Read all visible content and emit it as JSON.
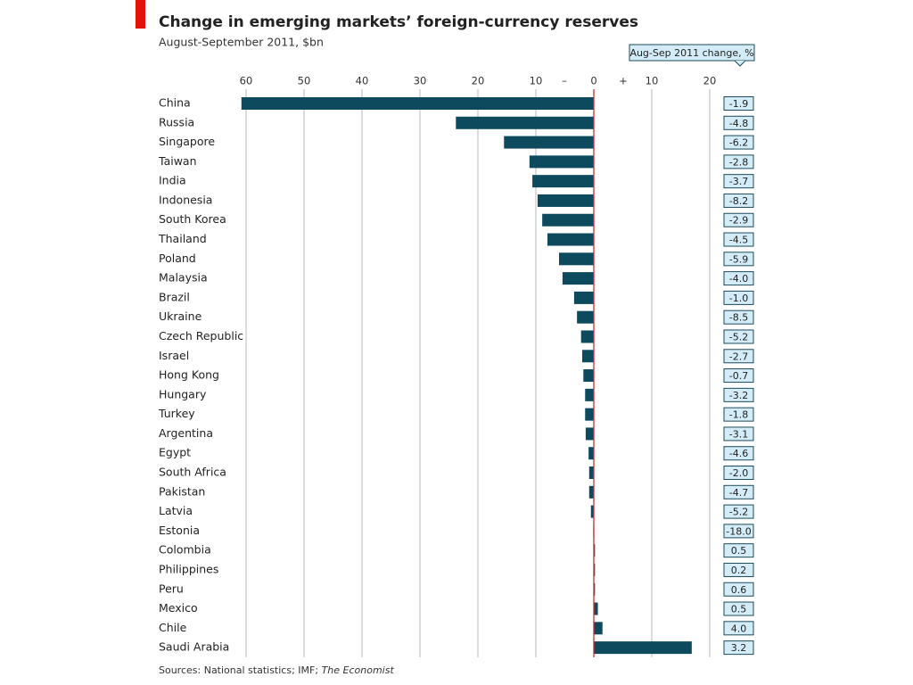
{
  "chart_data": {
    "type": "bar",
    "orientation": "horizontal",
    "title": "Change in emerging markets’ foreign-currency reserves",
    "subtitle": "August-September 2011, $bn",
    "categories": [
      "China",
      "Russia",
      "Singapore",
      "Taiwan",
      "India",
      "Indonesia",
      "South Korea",
      "Thailand",
      "Poland",
      "Malaysia",
      "Brazil",
      "Ukraine",
      "Czech Republic",
      "Israel",
      "Hong Kong",
      "Hungary",
      "Turkey",
      "Argentina",
      "Egypt",
      "South Africa",
      "Pakistan",
      "Latvia",
      "Estonia",
      "Colombia",
      "Philippines",
      "Peru",
      "Mexico",
      "Chile",
      "Saudi Arabia"
    ],
    "values": [
      -60.8,
      -23.8,
      -15.5,
      -11.1,
      -10.6,
      -9.7,
      -8.9,
      -8.0,
      -6.0,
      -5.4,
      -3.4,
      -2.9,
      -2.2,
      -2.0,
      -1.8,
      -1.5,
      -1.5,
      -1.4,
      -0.9,
      -0.8,
      -0.8,
      -0.5,
      -0.1,
      0.2,
      0.2,
      0.2,
      0.7,
      1.5,
      16.9
    ],
    "color": "#0d4a5e",
    "zero_line_color": "#d9302c",
    "xlim": [
      -62,
      22
    ],
    "xticks": [
      {
        "value": -60,
        "label": "60"
      },
      {
        "value": -50,
        "label": "50"
      },
      {
        "value": -40,
        "label": "40"
      },
      {
        "value": -30,
        "label": "30"
      },
      {
        "value": -20,
        "label": "20"
      },
      {
        "value": -10,
        "label": "10"
      },
      0,
      10,
      20
    ],
    "grid": true,
    "negative_sign": "–",
    "positive_sign": "+",
    "changes": {
      "name": "Aug-Sep 2011 change, %",
      "values": [
        -1.9,
        -4.8,
        -6.2,
        -2.8,
        -3.7,
        -8.2,
        -2.9,
        -4.5,
        -5.9,
        -4.0,
        -1.0,
        -8.5,
        -5.2,
        -2.7,
        -0.7,
        -3.2,
        -1.8,
        -3.1,
        -4.6,
        -2.0,
        -4.7,
        -5.2,
        -18.0,
        0.5,
        0.2,
        0.6,
        0.5,
        4.0,
        3.2
      ],
      "value_labels": [
        "-1.9",
        "-4.8",
        "-6.2",
        "-2.8",
        "-3.7",
        "-8.2",
        "-2.9",
        "-4.5",
        "-5.9",
        "-4.0",
        "-1.0",
        "-8.5",
        "-5.2",
        "-2.7",
        "-0.7",
        "-3.2",
        "-1.8",
        "-3.1",
        "-4.6",
        "-2.0",
        "-4.7",
        "-5.2",
        "-18.0",
        "0.5",
        "0.2",
        "0.6",
        "0.5",
        "4.0",
        "3.2"
      ],
      "color": "#d4ecf7"
    },
    "source": "Sources: National statistics; IMF;",
    "source_publication": "The Economist"
  }
}
